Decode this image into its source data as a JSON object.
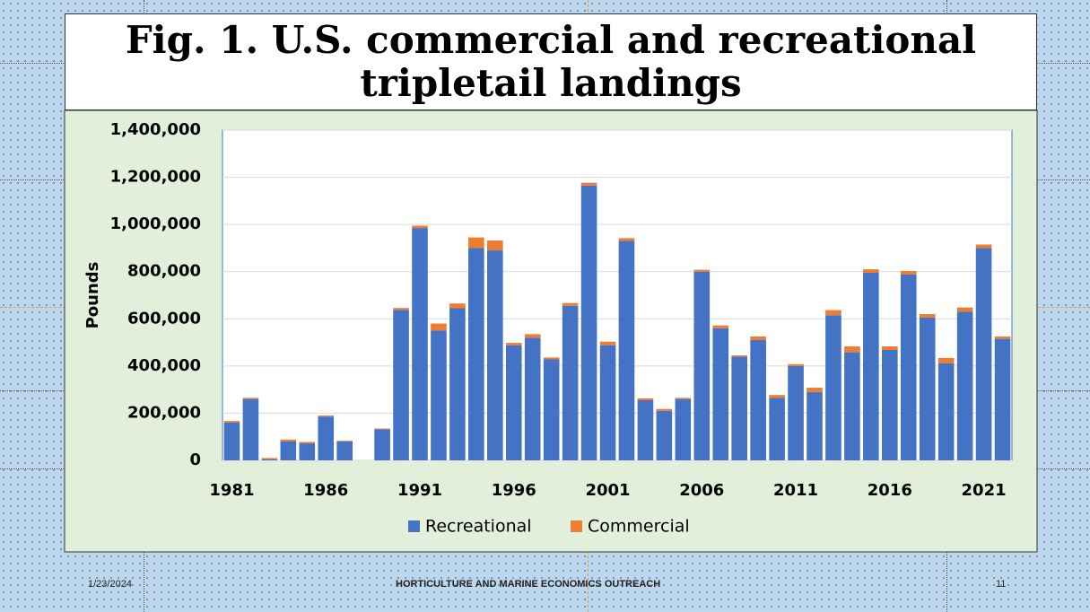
{
  "chart_data": {
    "type": "stacked_bar",
    "title": "Fig. 1. U.S. commercial and recreational tripletail landings",
    "y_label": "Pounds",
    "categories": [
      "1981",
      null,
      null,
      null,
      null,
      "1986",
      null,
      null,
      null,
      null,
      "1991",
      null,
      null,
      null,
      null,
      "1996",
      null,
      null,
      null,
      null,
      "2001",
      null,
      null,
      null,
      null,
      "2006",
      null,
      null,
      null,
      null,
      "2011",
      null,
      null,
      null,
      null,
      "2016",
      null,
      null,
      null,
      null,
      "2021",
      null
    ],
    "series": [
      {
        "name": "Recreational",
        "color": "#4472c4",
        "values": [
          160000,
          260000,
          5000,
          80000,
          72000,
          185000,
          80000,
          0,
          132000,
          638000,
          985000,
          550000,
          645000,
          900000,
          890000,
          488000,
          520000,
          428000,
          655000,
          1165000,
          488000,
          930000,
          255000,
          210000,
          260000,
          800000,
          560000,
          440000,
          510000,
          265000,
          400000,
          290000,
          615000,
          458000,
          795000,
          468000,
          788000,
          605000,
          412000,
          630000,
          900000,
          515000
        ]
      },
      {
        "name": "Commercial",
        "color": "#ed7d31",
        "values": [
          7000,
          5000,
          5000,
          8000,
          6000,
          5000,
          3000,
          0,
          3000,
          8000,
          10000,
          30000,
          20000,
          45000,
          42000,
          10000,
          15000,
          8000,
          12000,
          12000,
          15000,
          12000,
          8000,
          8000,
          5000,
          8000,
          12000,
          5000,
          15000,
          12000,
          8000,
          18000,
          22000,
          25000,
          15000,
          15000,
          15000,
          15000,
          22000,
          18000,
          15000,
          10000
        ]
      }
    ],
    "ylim": [
      0,
      1400000
    ],
    "yticks": [
      0,
      {
        "value": 200000,
        "label": "200,000"
      },
      {
        "value": 400000,
        "label": "400,000"
      },
      {
        "value": 600000,
        "label": "600,000"
      },
      {
        "value": 800000,
        "label": "800,000"
      },
      {
        "value": 1000000,
        "label": "1,000,000"
      },
      {
        "value": 1200000,
        "label": "1,200,000"
      },
      {
        "value": 1400000,
        "label": "1,400,000"
      }
    ],
    "grid": true,
    "legend": "bottom"
  },
  "footer": {
    "date": "1/23/2024",
    "center": "HORTICULTURE AND MARINE ECONOMICS OUTREACH",
    "page": "11"
  }
}
